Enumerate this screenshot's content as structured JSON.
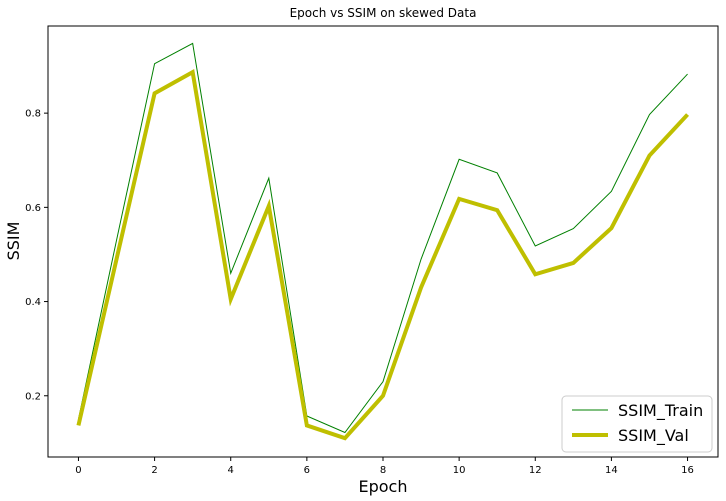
{
  "chart_data": {
    "type": "line",
    "title": "Epoch vs SSIM on skewed Data",
    "xlabel": "Epoch",
    "ylabel": "SSIM",
    "xlim": [
      -0.8,
      16.8
    ],
    "ylim": [
      0.07,
      0.985
    ],
    "xticks": [
      0,
      2,
      4,
      6,
      8,
      10,
      12,
      14,
      16
    ],
    "yticks": [
      0.2,
      0.4,
      0.6,
      0.8
    ],
    "grid": false,
    "legend_position": "lower-right",
    "x": [
      0,
      1,
      2,
      3,
      4,
      5,
      6,
      7,
      8,
      9,
      10,
      11,
      12,
      13,
      14,
      15,
      16
    ],
    "series": [
      {
        "name": "SSIM_Train",
        "color": "#008000",
        "line_width": "thin",
        "values": [
          0.15,
          0.53,
          0.905,
          0.948,
          0.46,
          0.662,
          0.157,
          0.122,
          0.23,
          0.49,
          0.702,
          0.673,
          0.518,
          0.555,
          0.634,
          0.797,
          0.883
        ]
      },
      {
        "name": "SSIM_Val",
        "color": "#bfbf00",
        "line_width": "thick",
        "values": [
          0.137,
          0.49,
          0.842,
          0.887,
          0.405,
          0.603,
          0.137,
          0.11,
          0.2,
          0.43,
          0.618,
          0.594,
          0.458,
          0.482,
          0.556,
          0.71,
          0.797
        ]
      }
    ]
  }
}
